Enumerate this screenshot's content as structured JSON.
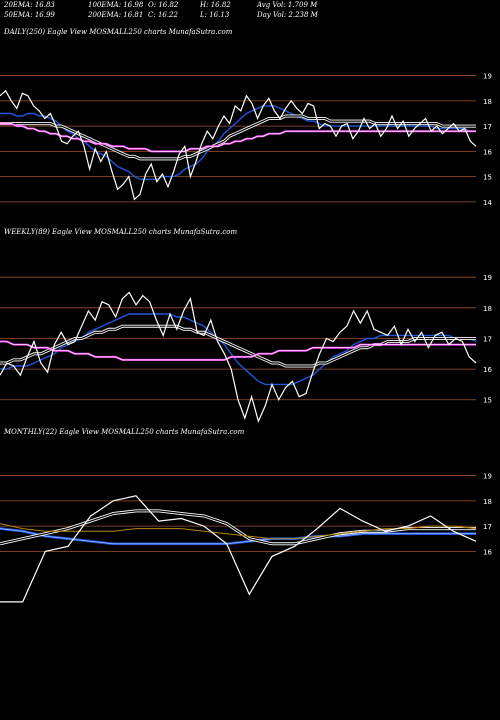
{
  "header": {
    "stats": [
      [
        "20EMA: 16.83",
        "100EMA: 16.98",
        "O: 16.82",
        "H: 16.82",
        "Avg Vol: 1.709 M"
      ],
      [
        "50EMA: 16.99",
        "200EMA: 16.81",
        "C: 16.22",
        "L: 16.13",
        "Day Vol: 2.238 M"
      ]
    ]
  },
  "colors": {
    "background": "#000000",
    "price": "#ffffff",
    "gridline": "#a0522d",
    "ema_short": "#2255dd",
    "ema_long": "#ff44ff",
    "ema_brown": "#b8860b"
  },
  "chart_data": [
    {
      "type": "line",
      "title": "DAILY(250) Eagle  View  MOSMALL250  charts MunafaSutra.com",
      "ylim": [
        13.6,
        19.3
      ],
      "yticks": [
        19,
        18,
        17,
        16,
        15,
        14
      ],
      "series": [
        {
          "role": "price",
          "values": [
            18.2,
            18.4,
            18.0,
            17.7,
            18.3,
            18.2,
            17.8,
            17.6,
            17.3,
            17.5,
            17.0,
            16.4,
            16.3,
            16.6,
            16.8,
            16.2,
            15.3,
            16.1,
            15.6,
            16.0,
            15.2,
            14.5,
            14.7,
            15.0,
            14.1,
            14.3,
            15.1,
            15.5,
            14.8,
            15.1,
            14.6,
            15.2,
            15.9,
            16.2,
            15.0,
            15.6,
            16.3,
            16.8,
            16.5,
            17.0,
            17.4,
            17.1,
            17.8,
            17.6,
            18.2,
            17.9,
            17.3,
            17.8,
            18.1,
            17.6,
            17.3,
            17.7,
            18.0,
            17.7,
            17.5,
            17.9,
            17.8,
            16.9,
            17.1,
            17.0,
            16.6,
            17.0,
            17.1,
            16.5,
            16.8,
            17.3,
            16.9,
            17.1,
            16.6,
            16.9,
            17.4,
            16.9,
            17.2,
            16.6,
            16.9,
            17.1,
            17.3,
            16.8,
            17.0,
            16.7,
            16.9,
            17.1,
            16.8,
            16.9,
            16.4,
            16.2
          ]
        },
        {
          "role": "ema_short",
          "values": [
            17.5,
            17.5,
            17.5,
            17.4,
            17.4,
            17.5,
            17.5,
            17.4,
            17.4,
            17.3,
            17.2,
            17.0,
            16.8,
            16.7,
            16.5,
            16.4,
            16.2,
            16.0,
            15.9,
            15.8,
            15.6,
            15.4,
            15.3,
            15.2,
            15.0,
            14.9,
            14.9,
            14.9,
            14.9,
            15.0,
            15.0,
            15.0,
            15.1,
            15.3,
            15.4,
            15.5,
            15.7,
            16.0,
            16.2,
            16.4,
            16.7,
            16.9,
            17.1,
            17.3,
            17.5,
            17.6,
            17.7,
            17.8,
            17.8,
            17.8,
            17.7,
            17.6,
            17.5,
            17.4,
            17.3,
            17.2,
            17.2,
            17.1,
            17.0,
            17.0,
            17.0,
            17.0,
            17.0,
            17.0,
            17.0,
            17.0,
            17.0,
            17.0,
            17.0,
            17.0,
            17.0,
            17.0,
            17.0,
            17.0,
            17.0,
            17.0,
            17.0,
            17.0,
            16.9,
            16.9,
            16.9,
            16.9,
            16.9,
            16.9,
            16.8,
            16.8
          ]
        },
        {
          "role": "ema_mid",
          "values": [
            17.1,
            17.1,
            17.1,
            17.1,
            17.1,
            17.1,
            17.1,
            17.1,
            17.1,
            17.1,
            17.0,
            17.0,
            16.9,
            16.8,
            16.7,
            16.6,
            16.5,
            16.4,
            16.3,
            16.2,
            16.1,
            16.0,
            15.9,
            15.8,
            15.8,
            15.7,
            15.7,
            15.7,
            15.7,
            15.7,
            15.7,
            15.7,
            15.7,
            15.8,
            15.8,
            15.9,
            16.0,
            16.1,
            16.2,
            16.3,
            16.4,
            16.6,
            16.7,
            16.8,
            16.9,
            17.0,
            17.1,
            17.2,
            17.3,
            17.3,
            17.3,
            17.4,
            17.4,
            17.4,
            17.4,
            17.3,
            17.3,
            17.3,
            17.3,
            17.2,
            17.2,
            17.2,
            17.2,
            17.2,
            17.2,
            17.2,
            17.2,
            17.1,
            17.1,
            17.1,
            17.1,
            17.1,
            17.1,
            17.1,
            17.1,
            17.1,
            17.1,
            17.1,
            17.1,
            17.0,
            17.0,
            17.0,
            17.0,
            17.0,
            17.0,
            17.0
          ]
        },
        {
          "role": "ema_long",
          "values": [
            17.1,
            17.1,
            17.1,
            17.0,
            17.0,
            16.9,
            16.9,
            16.8,
            16.8,
            16.7,
            16.7,
            16.6,
            16.6,
            16.5,
            16.5,
            16.4,
            16.4,
            16.3,
            16.3,
            16.3,
            16.2,
            16.2,
            16.2,
            16.1,
            16.1,
            16.1,
            16.1,
            16.0,
            16.0,
            16.0,
            16.0,
            16.0,
            16.0,
            16.0,
            16.1,
            16.1,
            16.1,
            16.2,
            16.2,
            16.2,
            16.3,
            16.3,
            16.4,
            16.4,
            16.5,
            16.5,
            16.6,
            16.6,
            16.7,
            16.7,
            16.7,
            16.8,
            16.8,
            16.8,
            16.8,
            16.8,
            16.8,
            16.8,
            16.8,
            16.8,
            16.8,
            16.8,
            16.8,
            16.8,
            16.8,
            16.8,
            16.8,
            16.8,
            16.8,
            16.8,
            16.8,
            16.8,
            16.8,
            16.8,
            16.8,
            16.8,
            16.8,
            16.8,
            16.8,
            16.8,
            16.8,
            16.8,
            16.8,
            16.8,
            16.8,
            16.8
          ]
        }
      ]
    },
    {
      "type": "line",
      "title": "WEEKLY(89) Eagle  View  MOSMALL250  charts MunafaSutra.com",
      "ylim": [
        14.6,
        19.3
      ],
      "yticks": [
        19,
        18,
        17,
        16,
        15
      ],
      "series": [
        {
          "role": "price",
          "values": [
            15.8,
            16.2,
            16.1,
            15.8,
            16.4,
            16.9,
            16.2,
            15.9,
            16.8,
            17.2,
            16.8,
            16.9,
            17.4,
            17.9,
            17.6,
            18.2,
            18.1,
            17.7,
            18.3,
            18.5,
            18.1,
            18.4,
            18.2,
            17.6,
            17.1,
            17.8,
            17.3,
            17.9,
            18.3,
            17.2,
            17.1,
            17.6,
            16.9,
            16.5,
            16.0,
            15.0,
            14.4,
            15.1,
            14.3,
            14.8,
            15.5,
            15.0,
            15.4,
            15.6,
            15.1,
            15.2,
            15.9,
            16.5,
            17.0,
            16.9,
            17.2,
            17.4,
            17.9,
            17.5,
            17.9,
            17.3,
            17.2,
            17.1,
            17.4,
            16.8,
            17.3,
            16.9,
            17.2,
            16.7,
            17.1,
            17.2,
            16.8,
            17.0,
            16.9,
            16.4,
            16.2
          ]
        },
        {
          "role": "ema_short",
          "values": [
            16.0,
            16.0,
            16.1,
            16.1,
            16.1,
            16.2,
            16.3,
            16.4,
            16.5,
            16.7,
            16.8,
            16.9,
            17.0,
            17.2,
            17.3,
            17.4,
            17.5,
            17.6,
            17.7,
            17.8,
            17.8,
            17.8,
            17.8,
            17.8,
            17.8,
            17.8,
            17.7,
            17.7,
            17.6,
            17.5,
            17.4,
            17.2,
            17.0,
            16.8,
            16.5,
            16.2,
            16.0,
            15.8,
            15.6,
            15.5,
            15.5,
            15.5,
            15.5,
            15.5,
            15.6,
            15.7,
            15.8,
            16.0,
            16.2,
            16.4,
            16.5,
            16.6,
            16.8,
            16.9,
            17.0,
            17.0,
            17.1,
            17.1,
            17.1,
            17.1,
            17.1,
            17.1,
            17.1,
            17.1,
            17.1,
            17.1,
            17.1,
            17.0,
            17.0,
            17.0,
            16.9
          ]
        },
        {
          "role": "ema_mid",
          "values": [
            16.2,
            16.2,
            16.3,
            16.3,
            16.4,
            16.5,
            16.5,
            16.6,
            16.7,
            16.8,
            16.9,
            17.0,
            17.0,
            17.1,
            17.2,
            17.2,
            17.3,
            17.3,
            17.4,
            17.4,
            17.4,
            17.4,
            17.4,
            17.4,
            17.4,
            17.4,
            17.4,
            17.3,
            17.3,
            17.2,
            17.2,
            17.1,
            17.0,
            16.9,
            16.8,
            16.7,
            16.6,
            16.5,
            16.4,
            16.3,
            16.2,
            16.2,
            16.1,
            16.1,
            16.1,
            16.1,
            16.1,
            16.2,
            16.2,
            16.3,
            16.4,
            16.5,
            16.6,
            16.7,
            16.7,
            16.8,
            16.8,
            16.9,
            16.9,
            16.9,
            16.9,
            17.0,
            17.0,
            17.0,
            17.0,
            17.0,
            17.0,
            17.0,
            17.0,
            17.0,
            17.0
          ]
        },
        {
          "role": "ema_long",
          "values": [
            16.9,
            16.9,
            16.8,
            16.8,
            16.8,
            16.7,
            16.7,
            16.7,
            16.6,
            16.6,
            16.6,
            16.5,
            16.5,
            16.5,
            16.4,
            16.4,
            16.4,
            16.4,
            16.3,
            16.3,
            16.3,
            16.3,
            16.3,
            16.3,
            16.3,
            16.3,
            16.3,
            16.3,
            16.3,
            16.3,
            16.3,
            16.3,
            16.3,
            16.3,
            16.4,
            16.4,
            16.4,
            16.4,
            16.5,
            16.5,
            16.5,
            16.6,
            16.6,
            16.6,
            16.6,
            16.6,
            16.7,
            16.7,
            16.7,
            16.7,
            16.7,
            16.7,
            16.7,
            16.8,
            16.8,
            16.8,
            16.8,
            16.8,
            16.8,
            16.8,
            16.8,
            16.8,
            16.8,
            16.8,
            16.8,
            16.8,
            16.8,
            16.8,
            16.8,
            16.8,
            16.8
          ]
        }
      ]
    },
    {
      "type": "line",
      "title": "MONTHLY(22) Eagle  View  MOSMALL250  charts MunafaSutra.com",
      "ylim": [
        13.6,
        19.3
      ],
      "yticks": [
        19,
        18,
        17,
        16
      ],
      "series": [
        {
          "role": "price",
          "values": [
            14.0,
            14.0,
            16.0,
            16.2,
            17.4,
            18.0,
            18.2,
            17.2,
            17.3,
            17.0,
            16.3,
            14.3,
            15.8,
            16.2,
            16.9,
            17.7,
            17.2,
            16.8,
            17.0,
            17.4,
            16.8,
            16.4
          ]
        },
        {
          "role": "ema_short",
          "values": [
            16.9,
            16.8,
            16.6,
            16.5,
            16.4,
            16.3,
            16.3,
            16.3,
            16.3,
            16.3,
            16.3,
            16.4,
            16.5,
            16.5,
            16.6,
            16.6,
            16.7,
            16.7,
            16.7,
            16.7,
            16.7,
            16.7
          ]
        },
        {
          "role": "ema_mid",
          "values": [
            16.3,
            16.5,
            16.7,
            16.9,
            17.2,
            17.5,
            17.6,
            17.6,
            17.5,
            17.4,
            17.1,
            16.5,
            16.3,
            16.3,
            16.5,
            16.7,
            16.8,
            16.8,
            16.9,
            16.9,
            16.9,
            16.9
          ]
        },
        {
          "role": "ema_brown",
          "values": [
            17.1,
            16.9,
            16.8,
            16.8,
            16.8,
            16.8,
            16.9,
            16.9,
            16.9,
            16.8,
            16.7,
            16.6,
            16.5,
            16.5,
            16.6,
            16.7,
            16.8,
            16.9,
            16.9,
            17.0,
            17.0,
            16.9
          ]
        }
      ]
    }
  ]
}
